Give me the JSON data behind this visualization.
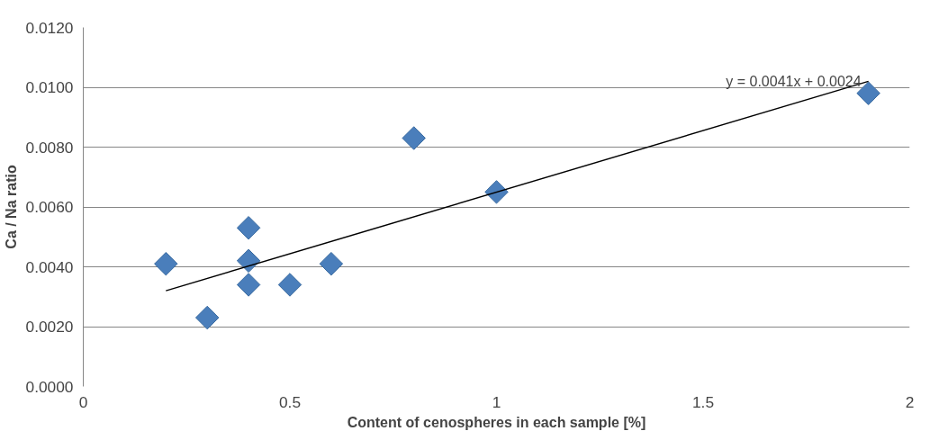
{
  "chart_data": {
    "type": "scatter",
    "xlabel": "Content of cenospheres in each sample [%]",
    "ylabel": "Ca / Na ratio",
    "x": [
      0.2,
      0.3,
      0.4,
      0.4,
      0.4,
      0.5,
      0.6,
      0.8,
      1.0,
      1.9
    ],
    "series": [
      {
        "color": "#4a7ebb",
        "marker": "diamond",
        "values": [
          0.0041,
          0.0023,
          0.0053,
          0.0042,
          0.0034,
          0.0034,
          0.0041,
          0.0083,
          0.0065,
          0.0098
        ]
      },
      {
        "type": "line",
        "color": "#000000",
        "x": [
          0.2,
          1.9
        ],
        "values": [
          0.0032,
          0.0102
        ]
      }
    ],
    "annotations": [
      "y = 0.0041x + 0.0024"
    ],
    "xlim": [
      0,
      2
    ],
    "xticks": [
      0,
      0.5,
      1,
      1.5,
      2
    ],
    "ylim": [
      0,
      0.012
    ],
    "yticks": [
      {
        "value": 0,
        "label": "0.0000"
      },
      {
        "value": 0.002,
        "label": "0.0020"
      },
      {
        "value": 0.004,
        "label": "0.0040"
      },
      {
        "value": 0.006,
        "label": "0.0060"
      },
      {
        "value": 0.008,
        "label": "0.0080"
      },
      {
        "value": 0.01,
        "label": "0.0100"
      },
      {
        "value": 0.012,
        "label": "0.0120"
      }
    ],
    "grid": "y"
  }
}
